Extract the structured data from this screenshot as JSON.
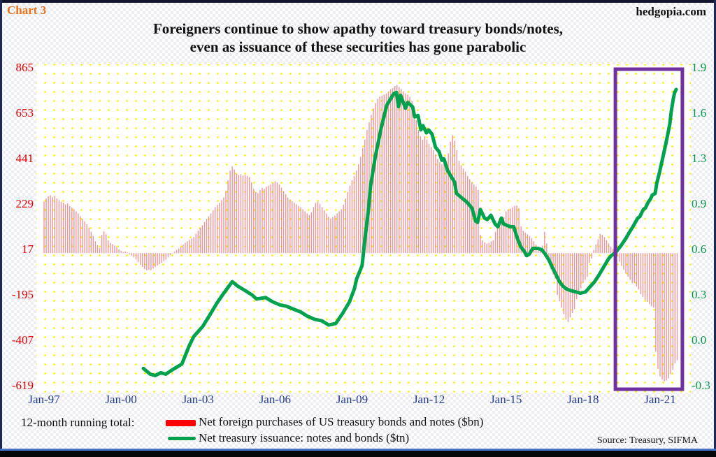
{
  "header": {
    "chart_label": "Chart 3",
    "site": "hedgopia.com",
    "title_line1": "Foreigners continue to show apathy toward treasury bonds/notes,",
    "title_line2": "even as issuance of these securities has gone parabolic"
  },
  "legend": {
    "prefix": "12-month running total:",
    "items": [
      {
        "label": "Net foreign purchases of US treasury bonds and notes ($bn)",
        "color": "#ff0000",
        "type": "bar"
      },
      {
        "label": "Net treasury issuance: notes and bonds ($tn)",
        "color": "#00a24e",
        "type": "line"
      }
    ]
  },
  "source": "Source: Treasury, SIFMA",
  "chart_data": {
    "type": "bar+line",
    "title": "Foreigners continue to show apathy toward treasury bonds/notes, even as issuance of these securities has gone parabolic",
    "x_axis": {
      "ticks": [
        "Jan-97",
        "Jan-00",
        "Jan-03",
        "Jan-06",
        "Jan-09",
        "Jan-12",
        "Jan-15",
        "Jan-18",
        "Jan-21"
      ],
      "tick_years": [
        1997,
        2000,
        2003,
        2006,
        2009,
        2012,
        2015,
        2018,
        2021
      ],
      "color": "#223a8a"
    },
    "left_axis": {
      "units": "$bn",
      "ticks": [
        "865",
        "653",
        "441",
        "229",
        "17",
        "-195",
        "-407",
        "-619"
      ],
      "tick_values": [
        865,
        653,
        441,
        229,
        17,
        -195,
        -407,
        -619
      ],
      "color": "#e60000",
      "grid": false
    },
    "right_axis": {
      "units": "$tn",
      "ticks": [
        "1.9",
        "1.6",
        "1.3",
        "0.9",
        "0.6",
        "0.3",
        "0.0",
        "-0.3"
      ],
      "range": [
        -0.3,
        1.9
      ],
      "color": "#009a48",
      "grid": false
    },
    "highlight_box": {
      "x_start_year": 2019.26,
      "x_end_year": 2021.87,
      "color": "#7030a0"
    },
    "series": [
      {
        "name": "Net foreign purchases of US treasury bonds and notes ($bn)",
        "type": "bar",
        "axis": "left",
        "color": "#ef9598",
        "start_year": 1997.0,
        "interval_months": 1,
        "values": [
          240,
          255,
          265,
          270,
          262,
          268,
          255,
          248,
          240,
          235,
          228,
          232,
          220,
          212,
          205,
          195,
          185,
          172,
          160,
          148,
          135,
          118,
          100,
          80,
          55,
          38,
          25,
          85,
          102,
          88,
          60,
          48,
          42,
          35,
          28,
          18,
          10,
          5,
          8,
          3,
          -5,
          -12,
          -20,
          -30,
          -42,
          -55,
          -65,
          -75,
          -80,
          -78,
          -80,
          -72,
          -65,
          -58,
          -52,
          -45,
          -38,
          -30,
          -20,
          -10,
          0,
          8,
          15,
          22,
          30,
          39,
          48,
          55,
          62,
          68,
          75,
          90,
          105,
          118,
          130,
          145,
          160,
          172,
          185,
          200,
          215,
          225,
          235,
          248,
          260,
          290,
          340,
          385,
          405,
          390,
          370,
          365,
          368,
          362,
          365,
          360,
          355,
          330,
          300,
          285,
          280,
          295,
          305,
          300,
          310,
          315,
          320,
          328,
          335,
          330,
          320,
          305,
          290,
          275,
          260,
          250,
          242,
          235,
          228,
          220,
          215,
          205,
          195,
          185,
          178,
          190,
          215,
          235,
          240,
          230,
          215,
          200,
          185,
          170,
          162,
          168,
          175,
          185,
          195,
          205,
          225,
          255,
          285,
          315,
          340,
          360,
          385,
          415,
          450,
          490,
          530,
          575,
          610,
          645,
          675,
          700,
          720,
          730,
          735,
          740,
          745,
          755,
          765,
          770,
          780,
          785,
          775,
          765,
          755,
          745,
          740,
          730,
          710,
          670,
          620,
          575,
          545,
          530,
          545,
          530,
          510,
          495,
          480,
          460,
          440,
          425,
          415,
          420,
          430,
          465,
          520,
          550,
          525,
          480,
          430,
          410,
          395,
          380,
          360,
          345,
          330,
          320,
          310,
          295,
          85,
          60,
          50,
          45,
          48,
          55,
          60,
          100,
          130,
          145,
          158,
          168,
          195,
          202,
          208,
          214,
          220,
          222,
          210,
          125,
          105,
          95,
          88,
          80,
          70,
          55,
          40,
          28,
          22,
          35,
          100,
          45,
          -20,
          -75,
          -100,
          -120,
          -195,
          -225,
          -255,
          -285,
          -310,
          -322,
          -300,
          -280,
          -262,
          -215,
          -185,
          -165,
          -140,
          -125,
          -110,
          -45,
          -25,
          15,
          40,
          65,
          90,
          85,
          75,
          60,
          45,
          30,
          20,
          10,
          -15,
          -40,
          -60,
          -78,
          -95,
          -110,
          -125,
          -140,
          -140,
          -155,
          -170,
          -192,
          -205,
          -218,
          -228,
          -238,
          -248,
          -255,
          -460,
          -540,
          -575,
          -590,
          -598,
          -595,
          -585,
          -565,
          -545,
          -515,
          -500
        ]
      },
      {
        "name": "Net treasury issuance: notes and bonds ($tn)",
        "type": "line",
        "axis": "right",
        "color": "#00a24e",
        "points": [
          [
            2000.87,
            -0.18
          ],
          [
            2001.0,
            -0.2
          ],
          [
            2001.14,
            -0.22
          ],
          [
            2001.33,
            -0.23
          ],
          [
            2001.55,
            -0.21
          ],
          [
            2001.74,
            -0.22
          ],
          [
            2002.0,
            -0.19
          ],
          [
            2002.37,
            -0.15
          ],
          [
            2002.64,
            -0.03
          ],
          [
            2002.83,
            0.04
          ],
          [
            2003.18,
            0.11
          ],
          [
            2003.46,
            0.19
          ],
          [
            2003.73,
            0.27
          ],
          [
            2004.0,
            0.34
          ],
          [
            2004.33,
            0.42
          ],
          [
            2004.54,
            0.39
          ],
          [
            2004.82,
            0.36
          ],
          [
            2005.09,
            0.33
          ],
          [
            2005.28,
            0.3
          ],
          [
            2005.63,
            0.31
          ],
          [
            2005.91,
            0.28
          ],
          [
            2006.18,
            0.26
          ],
          [
            2006.45,
            0.25
          ],
          [
            2006.72,
            0.23
          ],
          [
            2007.0,
            0.21
          ],
          [
            2007.27,
            0.18
          ],
          [
            2007.54,
            0.16
          ],
          [
            2007.81,
            0.15
          ],
          [
            2008.09,
            0.12
          ],
          [
            2008.36,
            0.13
          ],
          [
            2008.63,
            0.2
          ],
          [
            2008.9,
            0.28
          ],
          [
            2009.09,
            0.37
          ],
          [
            2009.18,
            0.44
          ],
          [
            2009.39,
            0.53
          ],
          [
            2009.53,
            0.76
          ],
          [
            2009.64,
            0.92
          ],
          [
            2009.72,
            1.08
          ],
          [
            2009.91,
            1.29
          ],
          [
            2010.13,
            1.48
          ],
          [
            2010.35,
            1.64
          ],
          [
            2010.62,
            1.72
          ],
          [
            2010.73,
            1.73
          ],
          [
            2010.81,
            1.63
          ],
          [
            2010.89,
            1.71
          ],
          [
            2011.08,
            1.62
          ],
          [
            2011.17,
            1.66
          ],
          [
            2011.36,
            1.63
          ],
          [
            2011.44,
            1.56
          ],
          [
            2011.57,
            1.57
          ],
          [
            2011.68,
            1.47
          ],
          [
            2011.76,
            1.5
          ],
          [
            2011.9,
            1.45
          ],
          [
            2011.98,
            1.47
          ],
          [
            2012.12,
            1.44
          ],
          [
            2012.25,
            1.35
          ],
          [
            2012.39,
            1.32
          ],
          [
            2012.5,
            1.26
          ],
          [
            2012.58,
            1.27
          ],
          [
            2012.72,
            1.19
          ],
          [
            2012.85,
            1.15
          ],
          [
            2012.99,
            1.11
          ],
          [
            2013.07,
            1.03
          ],
          [
            2013.21,
            1.01
          ],
          [
            2013.48,
            0.97
          ],
          [
            2013.67,
            0.93
          ],
          [
            2013.81,
            0.84
          ],
          [
            2013.89,
            0.83
          ],
          [
            2014.0,
            0.92
          ],
          [
            2014.16,
            0.86
          ],
          [
            2014.27,
            0.85
          ],
          [
            2014.41,
            0.88
          ],
          [
            2014.57,
            0.82
          ],
          [
            2014.68,
            0.8
          ],
          [
            2014.82,
            0.86
          ],
          [
            2014.9,
            0.82
          ],
          [
            2015.03,
            0.81
          ],
          [
            2015.17,
            0.8
          ],
          [
            2015.3,
            0.8
          ],
          [
            2015.44,
            0.72
          ],
          [
            2015.58,
            0.66
          ],
          [
            2015.71,
            0.63
          ],
          [
            2015.8,
            0.6
          ],
          [
            2015.9,
            0.61
          ],
          [
            2016.04,
            0.65
          ],
          [
            2016.26,
            0.65
          ],
          [
            2016.4,
            0.64
          ],
          [
            2016.53,
            0.61
          ],
          [
            2016.67,
            0.57
          ],
          [
            2016.8,
            0.52
          ],
          [
            2016.94,
            0.47
          ],
          [
            2017.08,
            0.42
          ],
          [
            2017.21,
            0.39
          ],
          [
            2017.35,
            0.37
          ],
          [
            2017.49,
            0.36
          ],
          [
            2017.7,
            0.35
          ],
          [
            2017.9,
            0.34
          ],
          [
            2018.1,
            0.35
          ],
          [
            2018.25,
            0.38
          ],
          [
            2018.45,
            0.42
          ],
          [
            2018.6,
            0.46
          ],
          [
            2018.8,
            0.52
          ],
          [
            2019.0,
            0.58
          ],
          [
            2019.1,
            0.6
          ],
          [
            2019.26,
            0.62
          ],
          [
            2019.48,
            0.67
          ],
          [
            2019.67,
            0.72
          ],
          [
            2019.8,
            0.76
          ],
          [
            2019.94,
            0.8
          ],
          [
            2020.13,
            0.86
          ],
          [
            2020.21,
            0.87
          ],
          [
            2020.35,
            0.92
          ],
          [
            2020.43,
            0.93
          ],
          [
            2020.54,
            0.97
          ],
          [
            2020.62,
            0.99
          ],
          [
            2020.7,
            1.02
          ],
          [
            2020.81,
            1.03
          ],
          [
            2020.87,
            1.1
          ],
          [
            2020.97,
            1.17
          ],
          [
            2021.11,
            1.28
          ],
          [
            2021.22,
            1.37
          ],
          [
            2021.3,
            1.44
          ],
          [
            2021.38,
            1.51
          ],
          [
            2021.44,
            1.6
          ],
          [
            2021.52,
            1.69
          ],
          [
            2021.57,
            1.73
          ],
          [
            2021.63,
            1.75
          ]
        ]
      }
    ]
  }
}
